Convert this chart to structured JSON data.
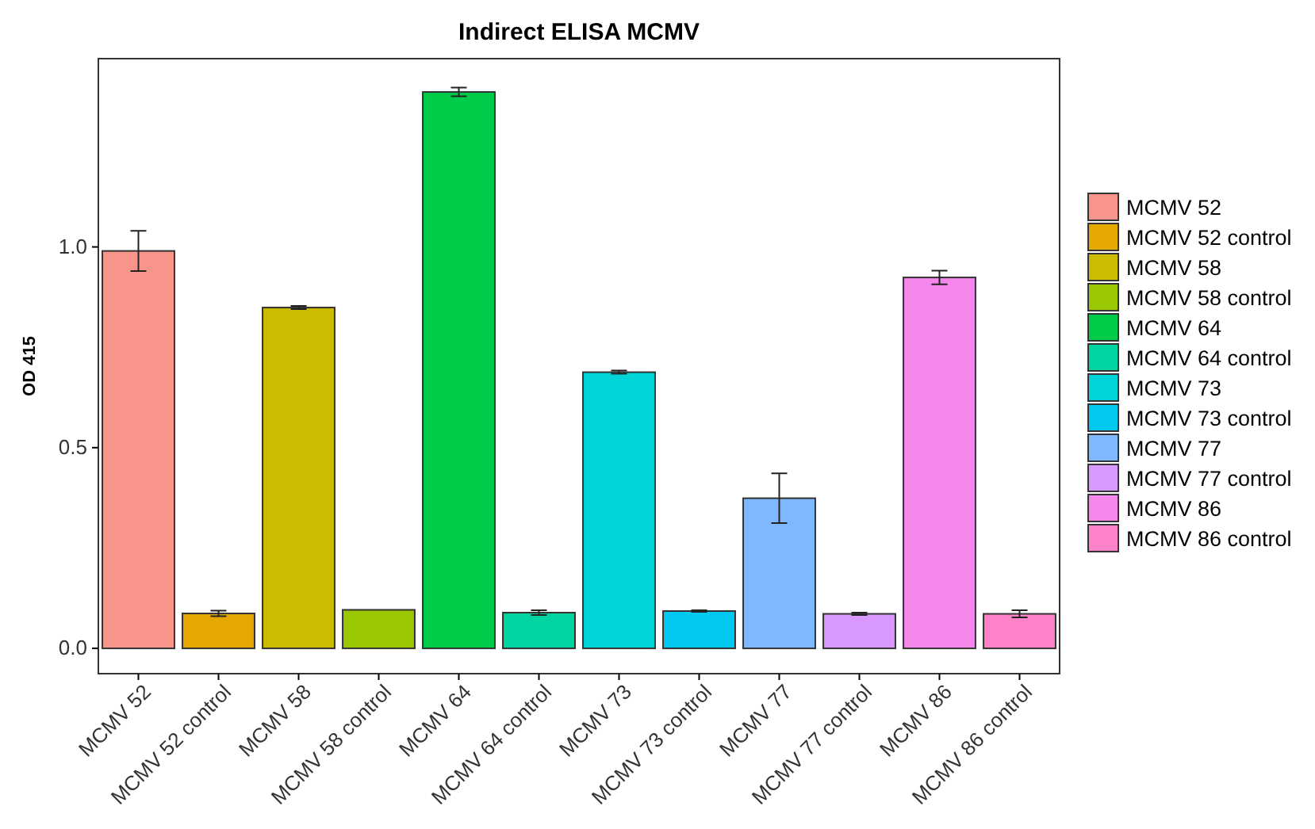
{
  "chart_data": {
    "type": "bar",
    "title": "Indirect ELISA MCMV",
    "ylabel": "OD 415",
    "categories": [
      "MCMV 52",
      "MCMV 52 control",
      "MCMV 58",
      "MCMV 58 control",
      "MCMV 64",
      "MCMV 64 control",
      "MCMV 73",
      "MCMV 73 control",
      "MCMV 77",
      "MCMV 77 control",
      "MCMV 86",
      "MCMV 86 control"
    ],
    "series": [
      {
        "name": "MCMV 52",
        "color": "#f8958a",
        "values": [
          0.99,
          null,
          null,
          null,
          null,
          null,
          null,
          null,
          null,
          null,
          null,
          null
        ],
        "errors": [
          0.05,
          null,
          null,
          null,
          null,
          null,
          null,
          null,
          null,
          null,
          null,
          null
        ]
      },
      {
        "name": "MCMV 52 control",
        "color": "#e6a800",
        "values": [
          null,
          0.087,
          null,
          null,
          null,
          null,
          null,
          null,
          null,
          null,
          null,
          null
        ],
        "errors": [
          null,
          0.007,
          null,
          null,
          null,
          null,
          null,
          null,
          null,
          null,
          null,
          null
        ]
      },
      {
        "name": "MCMV 58",
        "color": "#ccbb00",
        "values": [
          null,
          null,
          0.849,
          null,
          null,
          null,
          null,
          null,
          null,
          null,
          null,
          null
        ],
        "errors": [
          null,
          null,
          0.004,
          null,
          null,
          null,
          null,
          null,
          null,
          null,
          null,
          null
        ]
      },
      {
        "name": "MCMV 58 control",
        "color": "#99c800",
        "values": [
          null,
          null,
          null,
          0.096,
          null,
          null,
          null,
          null,
          null,
          null,
          null,
          null
        ]
      },
      {
        "name": "MCMV 64",
        "color": "#00cc4a",
        "values": [
          null,
          null,
          null,
          null,
          1.386,
          null,
          null,
          null,
          null,
          null,
          null,
          null
        ],
        "errors": [
          null,
          null,
          null,
          null,
          0.011,
          null,
          null,
          null,
          null,
          null,
          null,
          null
        ]
      },
      {
        "name": "MCMV 64 control",
        "color": "#00d4a0",
        "values": [
          null,
          null,
          null,
          null,
          null,
          0.089,
          null,
          null,
          null,
          null,
          null,
          null
        ],
        "errors": [
          null,
          null,
          null,
          null,
          null,
          0.006,
          null,
          null,
          null,
          null,
          null,
          null
        ]
      },
      {
        "name": "MCMV 73",
        "color": "#00d4d8",
        "values": [
          null,
          null,
          null,
          null,
          null,
          null,
          0.688,
          null,
          null,
          null,
          null,
          null
        ],
        "errors": [
          null,
          null,
          null,
          null,
          null,
          null,
          0.004,
          null,
          null,
          null,
          null,
          null
        ]
      },
      {
        "name": "MCMV 73 control",
        "color": "#00c8f0",
        "values": [
          null,
          null,
          null,
          null,
          null,
          null,
          null,
          0.093,
          null,
          null,
          null,
          null
        ],
        "errors": [
          null,
          null,
          null,
          null,
          null,
          null,
          null,
          0.002,
          null,
          null,
          null,
          null
        ]
      },
      {
        "name": "MCMV 77",
        "color": "#80b8ff",
        "values": [
          null,
          null,
          null,
          null,
          null,
          null,
          null,
          null,
          0.374,
          null,
          null,
          null
        ],
        "errors": [
          null,
          null,
          null,
          null,
          null,
          null,
          null,
          null,
          0.062,
          null,
          null,
          null
        ]
      },
      {
        "name": "MCMV 77 control",
        "color": "#d898ff",
        "values": [
          null,
          null,
          null,
          null,
          null,
          null,
          null,
          null,
          null,
          0.086,
          null,
          null
        ],
        "errors": [
          null,
          null,
          null,
          null,
          null,
          null,
          null,
          null,
          null,
          0.003,
          null,
          null
        ]
      },
      {
        "name": "MCMV 86",
        "color": "#f586ea",
        "values": [
          null,
          null,
          null,
          null,
          null,
          null,
          null,
          null,
          null,
          null,
          0.924,
          null
        ],
        "errors": [
          null,
          null,
          null,
          null,
          null,
          null,
          null,
          null,
          null,
          null,
          0.017,
          null
        ]
      },
      {
        "name": "MCMV 86 control",
        "color": "#ff82c8",
        "values": [
          null,
          null,
          null,
          null,
          null,
          null,
          null,
          null,
          null,
          null,
          null,
          0.086
        ],
        "errors": [
          null,
          null,
          null,
          null,
          null,
          null,
          null,
          null,
          null,
          null,
          null,
          0.009
        ]
      }
    ],
    "ylim": [
      -0.063,
      1.469
    ],
    "yticks": [
      {
        "value": 0,
        "label": "0.0"
      },
      {
        "value": 0.5,
        "label": "0.5"
      },
      {
        "value": 1,
        "label": "1.0"
      }
    ],
    "legend": "right"
  }
}
